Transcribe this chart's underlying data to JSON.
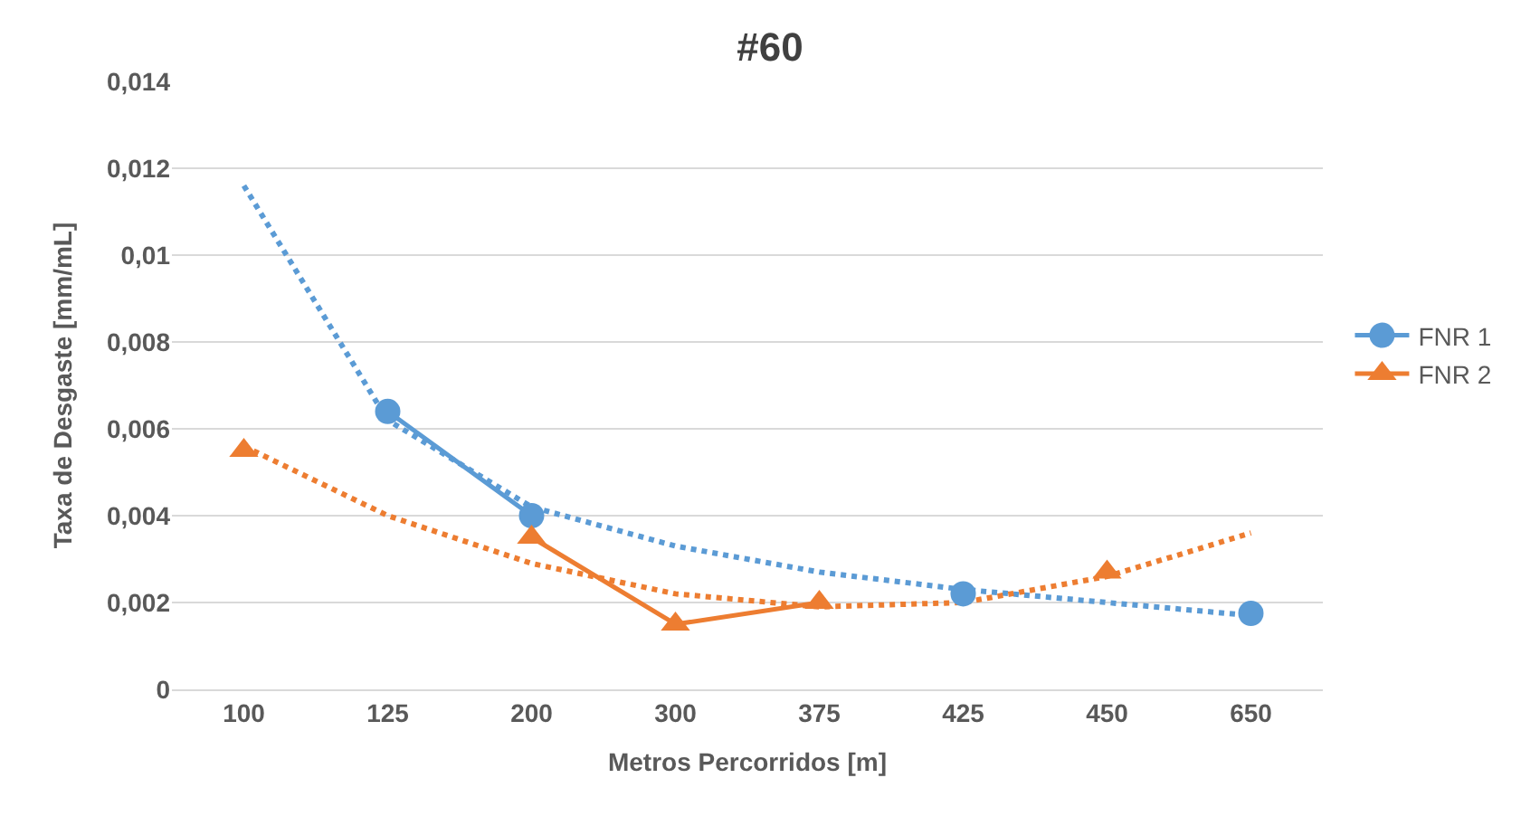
{
  "chart_data": {
    "type": "line",
    "title": "#60",
    "xlabel": "Metros Percorridos [m]",
    "ylabel": "Taxa de Desgaste [mm/mL]",
    "categories": [
      "100",
      "125",
      "200",
      "300",
      "375",
      "425",
      "450",
      "650"
    ],
    "series": [
      {
        "type": "line",
        "color": "#5b9bd5",
        "marker": "none",
        "line_style": "dotted",
        "values": [
          0.0116,
          0.0062,
          0.0042,
          0.0033,
          0.0027,
          0.0023,
          0.002,
          0.0017
        ]
      },
      {
        "type": "line",
        "color": "#ed7d31",
        "marker": "none",
        "line_style": "dotted",
        "values": [
          0.0056,
          0.004,
          0.0029,
          0.0022,
          0.0019,
          0.002,
          0.0026,
          0.0036
        ]
      },
      {
        "name": "FNR 1",
        "color": "#5b9bd5",
        "marker": "circle",
        "line_style": "solid",
        "values": [
          null,
          0.0064,
          0.004,
          null,
          null,
          0.0022,
          null,
          0.00175
        ]
      },
      {
        "name": "FNR 2",
        "color": "#ed7d31",
        "marker": "triangle",
        "line_style": "solid",
        "values": [
          0.0055,
          null,
          0.0035,
          0.0015,
          0.002,
          null,
          0.0027,
          null
        ]
      }
    ],
    "ylim": [
      0,
      0.014
    ],
    "yticks": [
      {
        "value": 0,
        "label": "0"
      },
      {
        "value": 0.002,
        "label": "0,002"
      },
      {
        "value": 0.004,
        "label": "0,004"
      },
      {
        "value": 0.006,
        "label": "0,006"
      },
      {
        "value": 0.008,
        "label": "0,008"
      },
      {
        "value": 0.01,
        "label": "0,01"
      },
      {
        "value": 0.012,
        "label": "0,012"
      },
      {
        "value": 0.014,
        "label": "0,014"
      }
    ],
    "grid": "y",
    "legend": "right"
  }
}
